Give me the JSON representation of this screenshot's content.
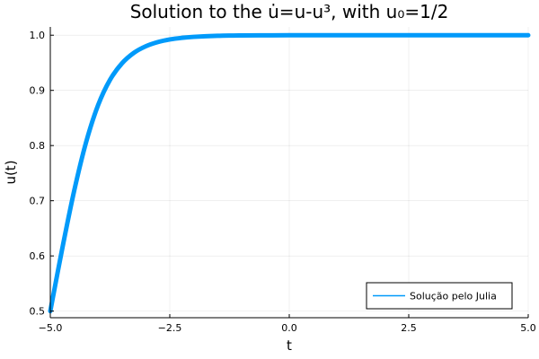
{
  "chart_data": {
    "type": "line",
    "title": "Solution to the u̇=u-u³, with u₀=1/2",
    "xlabel": "t",
    "ylabel": "u(t)",
    "xlim": [
      -5.0,
      5.0
    ],
    "ylim": [
      0.488,
      1.015
    ],
    "x_ticks": [
      -5.0,
      -2.5,
      0.0,
      2.5,
      5.0
    ],
    "x_tick_labels": [
      "−5.0",
      "−2.5",
      "0.0",
      "2.5",
      "5.0"
    ],
    "y_ticks": [
      0.5,
      0.6,
      0.7,
      0.8,
      0.9,
      1.0
    ],
    "y_tick_labels": [
      "0.5",
      "0.6",
      "0.7",
      "0.8",
      "0.9",
      "1.0"
    ],
    "grid": true,
    "legend_position": "bottom-right",
    "series": [
      {
        "name": "Solução pelo Julia",
        "color": "#009AFA",
        "x": [
          -5.0,
          -4.75,
          -4.5,
          -4.25,
          -4.0,
          -3.75,
          -3.5,
          -3.25,
          -3.0,
          -2.75,
          -2.5,
          -2.25,
          -2.0,
          -1.5,
          -1.0,
          -0.5,
          0.0,
          1.0,
          2.0,
          3.0,
          4.0,
          5.0
        ],
        "y": [
          0.5,
          0.6133,
          0.7182,
          0.8064,
          0.8733,
          0.9193,
          0.949,
          0.9681,
          0.98,
          0.9875,
          0.9923,
          0.9952,
          0.997,
          0.9989,
          0.9996,
          0.9998,
          0.9999,
          1.0,
          1.0,
          1.0,
          1.0,
          1.0
        ]
      }
    ]
  }
}
